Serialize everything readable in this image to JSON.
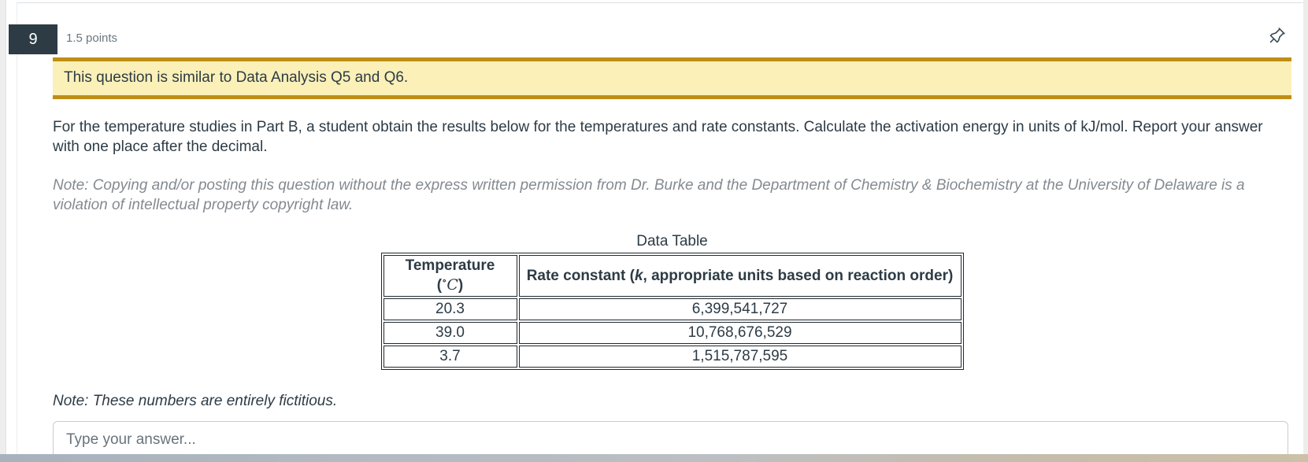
{
  "question": {
    "number": "9",
    "points": "1.5 points",
    "banner": "This question is similar to Data Analysis Q5 and Q6.",
    "body": "For the temperature studies in Part B, a student obtain the results below for the temperatures and rate constants. Calculate the activation energy in units of kJ/mol. Report your answer with one place after the decimal.",
    "copyright_note": "Note: Copying and/or posting this question without the express written permission from Dr. Burke and the Department of Chemistry & Biochemistry at the University of Delaware is a violation of intellectual property copyright law.",
    "fictitious_note": "Note: These numbers are entirely fictitious."
  },
  "table": {
    "title": "Data Table",
    "col1": {
      "label": "Temperature (",
      "degree": "∘",
      "symbol": "C",
      "close": ")"
    },
    "col2": {
      "prefix": "Rate constant (",
      "symbol": "k",
      "suffix": ", appropriate units based on reaction order)"
    },
    "rows": [
      [
        "20.3",
        "6,399,541,727"
      ],
      [
        "39.0",
        "10,768,676,529"
      ],
      [
        "3.7",
        "1,515,787,595"
      ]
    ]
  },
  "answer": {
    "placeholder": "Type your answer..."
  },
  "colors": {
    "text_dark": "#2D3B45",
    "points_gray": "#6B7780",
    "banner_background": "#FAF0B8",
    "banner_border": "#BF8E15",
    "note_gray": "#848A90",
    "input_border": "#C7CDD1",
    "number_badge_background": "#2D3B45"
  }
}
